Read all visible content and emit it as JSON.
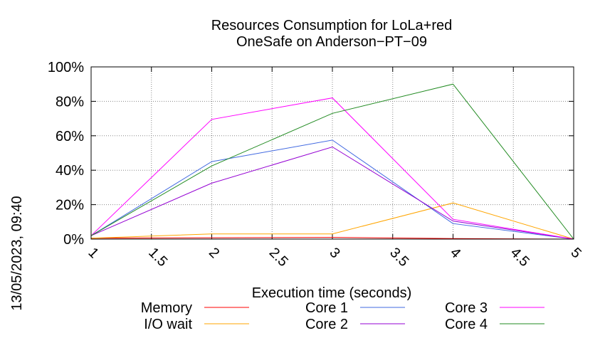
{
  "chart_data": {
    "type": "line",
    "title": "Resources Consumption for LoLa+red",
    "subtitle": "OneSafe on Anderson−PT−09",
    "xlabel": "Execution time (seconds)",
    "ylabel": "",
    "side_label": "13/05/2023, 09:40",
    "xlim": [
      1,
      5
    ],
    "ylim": [
      0,
      100
    ],
    "x_ticks": [
      1,
      1.5,
      2,
      2.5,
      3,
      3.5,
      4,
      4.5,
      5
    ],
    "y_ticks": [
      0,
      20,
      40,
      60,
      80,
      100
    ],
    "y_tick_labels": [
      "0%",
      "20%",
      "40%",
      "60%",
      "80%",
      "100%"
    ],
    "grid": true,
    "legend_position": "bottom",
    "x": [
      1,
      2,
      3,
      4,
      5
    ],
    "series": [
      {
        "name": "Memory",
        "color": "#ff0000",
        "values": [
          0.5,
          0.8,
          1.0,
          0.3,
          0
        ]
      },
      {
        "name": "I/O wait",
        "color": "#ffa500",
        "values": [
          0.5,
          3,
          3,
          21,
          0
        ]
      },
      {
        "name": "Core 1",
        "color": "#4169e1",
        "values": [
          2,
          45,
          57.5,
          9,
          0
        ]
      },
      {
        "name": "Core 2",
        "color": "#9400d3",
        "values": [
          2,
          32.5,
          53.5,
          10.5,
          0
        ]
      },
      {
        "name": "Core 3",
        "color": "#ff00ff",
        "values": [
          2,
          69.5,
          82,
          11.5,
          0
        ]
      },
      {
        "name": "Core 4",
        "color": "#228b22",
        "values": [
          2,
          42.5,
          73,
          90,
          0
        ]
      }
    ]
  }
}
